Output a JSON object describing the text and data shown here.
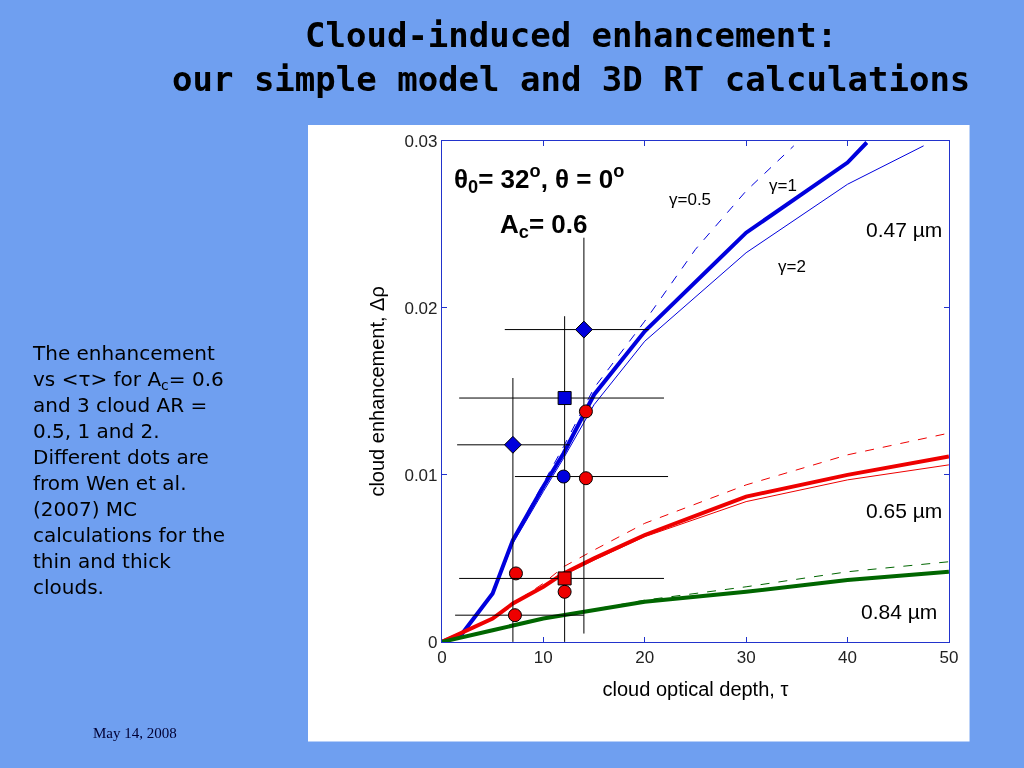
{
  "chart_data": {
    "type": "line",
    "title": "Cloud-induced enhancement:\nour simple model and 3D RT calculations",
    "xlabel": "cloud optical depth, τ",
    "ylabel": "cloud enhancement, Δρ",
    "xlim": [
      0,
      50
    ],
    "ylim": [
      0,
      0.03
    ],
    "xticks": [
      0,
      10,
      20,
      30,
      40,
      50
    ],
    "yticks": [
      0,
      0.01,
      0.02,
      0.03
    ],
    "legend": false,
    "marker": "none",
    "series": [
      {
        "name": "γ=0.5",
        "color": "#0000dd",
        "line_style": "dashed",
        "x": [
          0,
          2,
          5,
          7,
          10,
          12,
          15,
          20,
          25,
          30,
          34.7
        ],
        "values": [
          0,
          0.0005,
          0.003,
          0.0062,
          0.0095,
          0.0117,
          0.0152,
          0.0192,
          0.0235,
          0.027,
          0.0297
        ]
      },
      {
        "name": "γ=2",
        "color": "#0000dd",
        "line_style": "solid",
        "x": [
          0,
          2,
          5,
          7,
          10,
          12,
          15,
          20,
          30,
          40,
          47.5
        ],
        "values": [
          0,
          0.0004,
          0.0028,
          0.0059,
          0.009,
          0.011,
          0.0142,
          0.018,
          0.0233,
          0.0274,
          0.0297
        ]
      },
      {
        "name": "γ=1",
        "color": "#0000dd",
        "line_style": "solid",
        "x": [
          0,
          2,
          5,
          7,
          10,
          12,
          15,
          20,
          30,
          40,
          41.9
        ],
        "values": [
          0,
          0.0005,
          0.0029,
          0.0061,
          0.0093,
          0.0113,
          0.0148,
          0.0186,
          0.0245,
          0.0287,
          0.0299
        ]
      },
      {
        "color": "#ee0000",
        "line_style": "dashed",
        "x": [
          0,
          5,
          7,
          10,
          12,
          15,
          20,
          30,
          40,
          50
        ],
        "values": [
          0,
          0.0014,
          0.0023,
          0.0035,
          0.0045,
          0.0055,
          0.0071,
          0.0094,
          0.0112,
          0.0125
        ]
      },
      {
        "color": "#ee0000",
        "line_style": "solid",
        "x": [
          0,
          5,
          7,
          10,
          12,
          15,
          20,
          30,
          40,
          50
        ],
        "values": [
          0,
          0.0014,
          0.0023,
          0.0033,
          0.004,
          0.0049,
          0.0063,
          0.0084,
          0.0097,
          0.0106
        ]
      },
      {
        "color": "#ee0000",
        "line_style": "solid",
        "x": [
          0,
          5,
          7,
          10,
          12,
          15,
          20,
          30,
          40,
          50
        ],
        "values": [
          0,
          0.0014,
          0.0023,
          0.0033,
          0.0041,
          0.005,
          0.0064,
          0.0087,
          0.01,
          0.0111
        ]
      },
      {
        "color": "#006600",
        "line_style": "dashed",
        "x": [
          0,
          5,
          10,
          20,
          30,
          40,
          50
        ],
        "values": [
          0,
          0.0007,
          0.0014,
          0.0025,
          0.0033,
          0.0042,
          0.0048
        ]
      },
      {
        "color": "#006600",
        "line_style": "solid",
        "x": [
          0,
          5,
          10,
          20,
          30,
          40,
          50
        ],
        "values": [
          0,
          0.0007,
          0.0014,
          0.0024,
          0.003,
          0.0037,
          0.0042
        ]
      },
      {
        "type": "scatter",
        "color": "#0000dd",
        "marker": "diamond",
        "x": [
          14.0,
          7.0
        ],
        "values": [
          0.0187,
          0.0118
        ],
        "errors": [
          [
            0.0005,
            0.0242
          ],
          [
            0,
            0.0158
          ]
        ],
        "xerrors": [
          [
            6.2,
            20.4
          ],
          [
            1.5,
            12.6
          ]
        ]
      },
      {
        "type": "scatter",
        "color": "#0000dd",
        "marker": "square",
        "x": [
          12.1
        ],
        "values": [
          0.0146
        ],
        "errors": [
          [
            0,
            0.0195
          ]
        ],
        "xerrors": [
          [
            1.7,
            21.9
          ]
        ]
      },
      {
        "type": "scatter",
        "color": "#0000dd",
        "marker": "circle",
        "x": [
          12.0
        ],
        "values": [
          0.0099
        ],
        "xerrors": [
          [
            7.2,
            22.3
          ]
        ]
      },
      {
        "type": "scatter",
        "color": "#ee0000",
        "marker": "circle",
        "x": [
          14.2,
          7.3,
          12.1,
          14.2,
          7.2
        ],
        "values": [
          0.0138,
          0.0041,
          0.003,
          0.0098,
          0.0016
        ],
        "xerrors": [
          null,
          null,
          null,
          null,
          [
            1.3,
            14.0
          ]
        ]
      },
      {
        "type": "scatter",
        "color": "#ee0000",
        "marker": "square",
        "x": [
          12.1
        ],
        "values": [
          0.0038
        ],
        "xerrors": [
          [
            1.7,
            21.9
          ]
        ]
      }
    ],
    "annotations": [
      "θ$_{0}$= 32$^{o}$, θ = 0$^{o}$",
      "A$_{c}$= 0.6",
      "0.47 µm",
      "0.65 µm",
      "0.84 µm",
      "The enhancement\nvs <τ> for A$_{c}$= 0.6\nand 3 cloud AR =\n0.5, 1 and 2.\nDifferent dots are\nfrom Wen et al.\n(2007) MC\ncalculations for the\nthin and thick\nclouds.",
      "May 14, 2008"
    ]
  }
}
